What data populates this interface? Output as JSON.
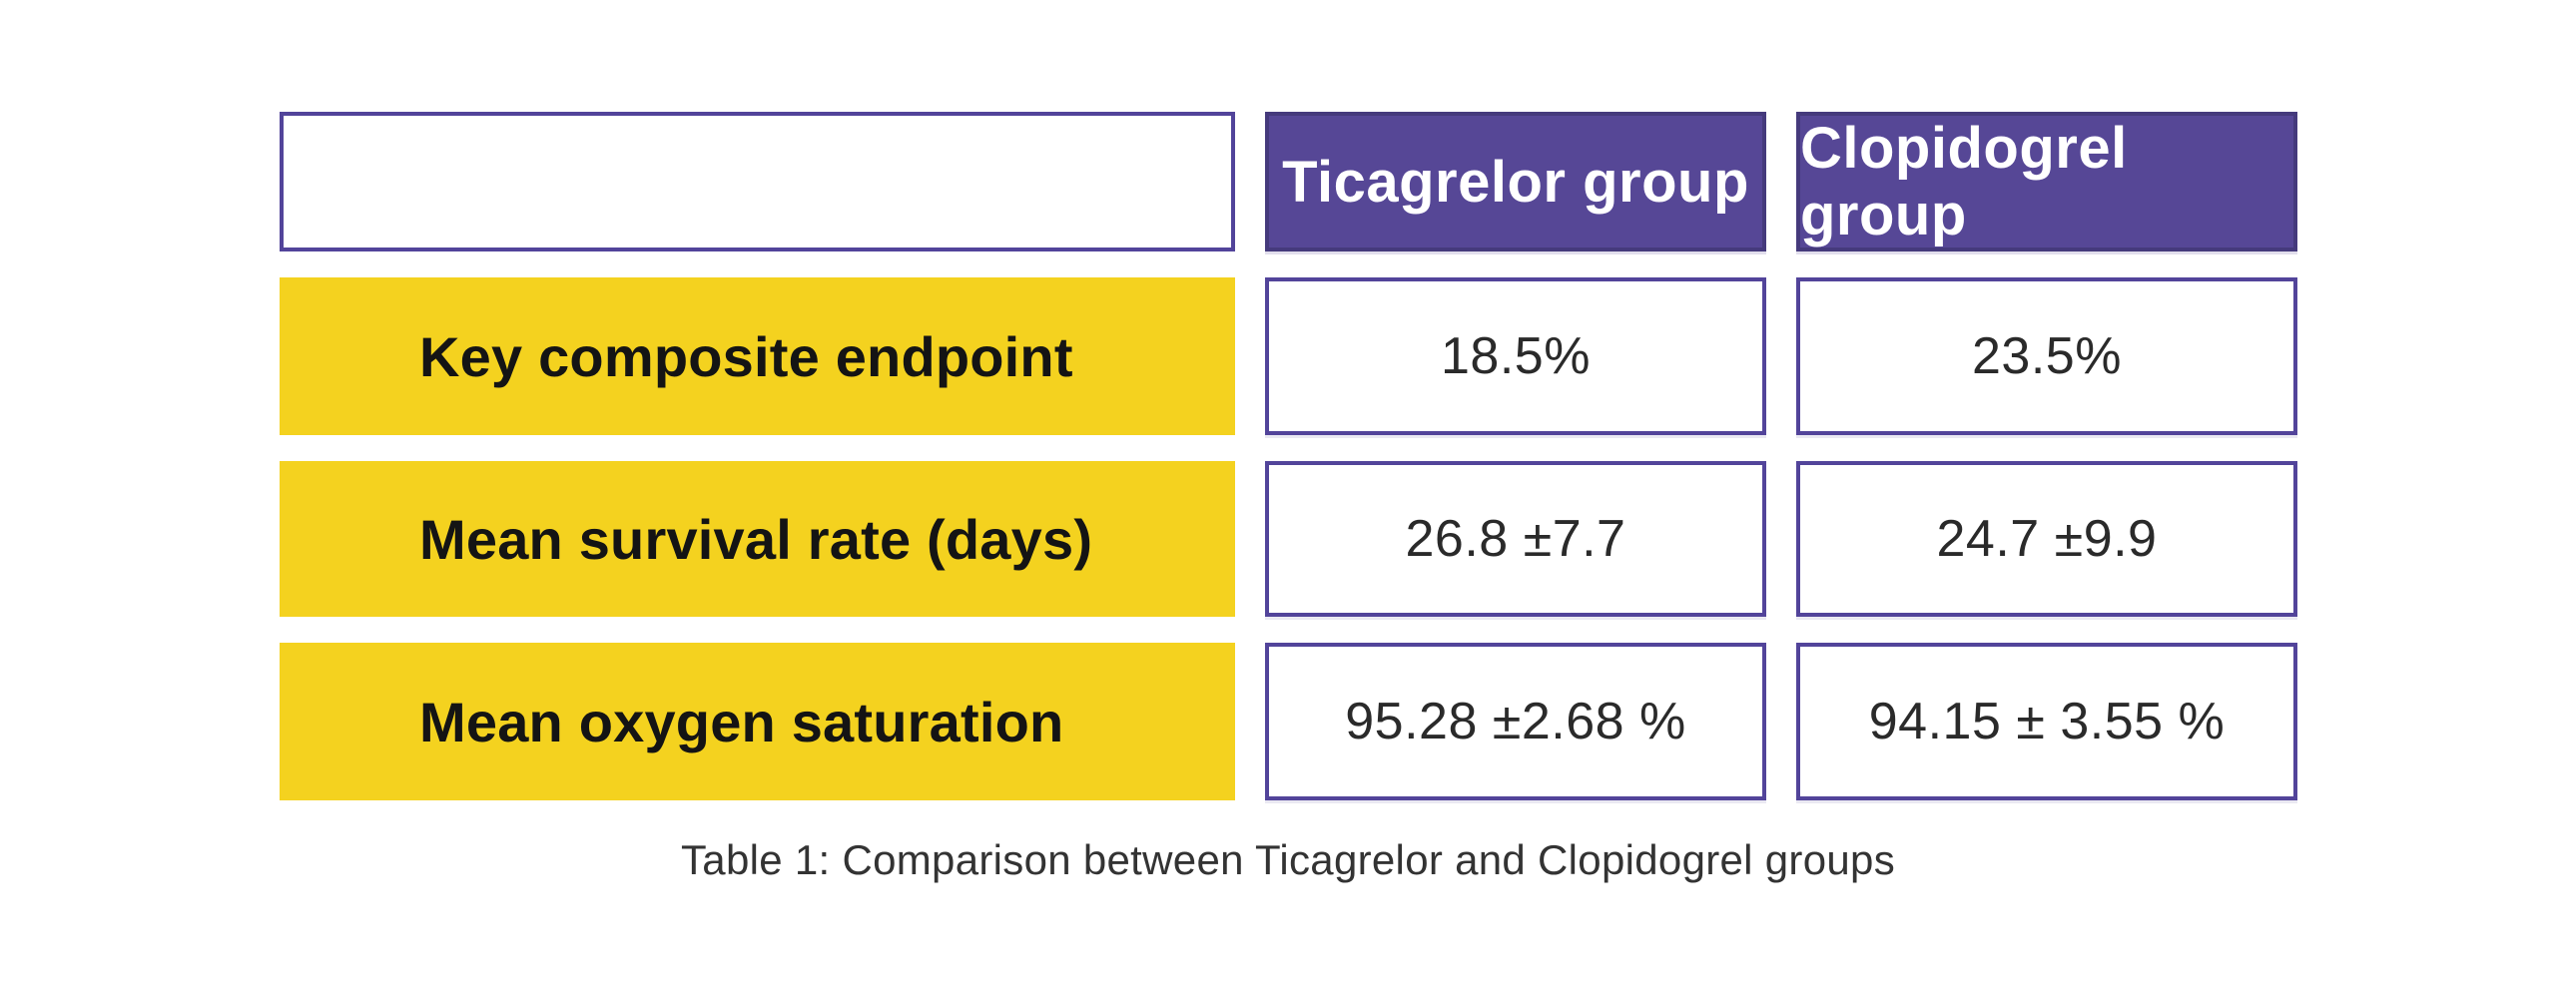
{
  "chart_data": {
    "type": "table",
    "title": "Table 1: Comparison between Ticagrelor and Clopidogrel groups",
    "columns": [
      "",
      "Ticagrelor group",
      "Clopidogrel group"
    ],
    "rows": [
      {
        "label": "Key composite endpoint",
        "values": [
          "18.5%",
          "23.5%"
        ]
      },
      {
        "label": "Mean survival rate (days)",
        "values": [
          "26.8 ±7.7",
          "24.7 ±9.9"
        ]
      },
      {
        "label": "Mean oxygen saturation",
        "values": [
          "95.28 ±2.68 %",
          "94.15 ± 3.55 %"
        ]
      }
    ],
    "layout": {
      "legend": "none",
      "grid": "off",
      "header_position": "top-row",
      "caption_position": "bottom-center"
    },
    "colors": {
      "header_bg": "#564796",
      "header_border": "#453a7c",
      "header_text": "#ffffff",
      "row_label_bg": "#f4d21f",
      "row_label_text": "#141414",
      "value_cell_border": "#52449a",
      "value_text": "#2a2a2a",
      "caption_text": "#333333",
      "page_bg": "#ffffff"
    }
  }
}
